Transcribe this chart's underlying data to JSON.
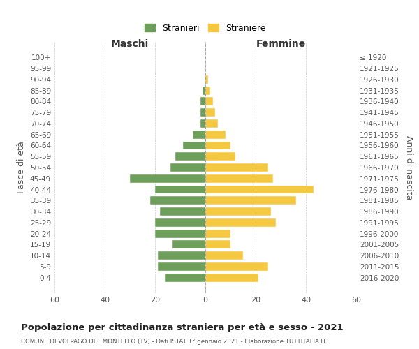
{
  "age_groups": [
    "0-4",
    "5-9",
    "10-14",
    "15-19",
    "20-24",
    "25-29",
    "30-34",
    "35-39",
    "40-44",
    "45-49",
    "50-54",
    "55-59",
    "60-64",
    "65-69",
    "70-74",
    "75-79",
    "80-84",
    "85-89",
    "90-94",
    "95-99",
    "100+"
  ],
  "birth_years": [
    "2016-2020",
    "2011-2015",
    "2006-2010",
    "2001-2005",
    "1996-2000",
    "1991-1995",
    "1986-1990",
    "1981-1985",
    "1976-1980",
    "1971-1975",
    "1966-1970",
    "1961-1965",
    "1956-1960",
    "1951-1955",
    "1946-1950",
    "1941-1945",
    "1936-1940",
    "1931-1935",
    "1926-1930",
    "1921-1925",
    "≤ 1920"
  ],
  "males": [
    16,
    19,
    19,
    13,
    20,
    20,
    18,
    22,
    20,
    30,
    14,
    12,
    9,
    5,
    2,
    2,
    2,
    1,
    0,
    0,
    0
  ],
  "females": [
    21,
    25,
    15,
    10,
    10,
    28,
    26,
    36,
    43,
    27,
    25,
    12,
    10,
    8,
    5,
    4,
    3,
    2,
    1,
    0,
    0
  ],
  "male_color": "#6d9e5a",
  "female_color": "#f5c842",
  "male_label": "Stranieri",
  "female_label": "Straniere",
  "title": "Popolazione per cittadinanza straniera per età e sesso - 2021",
  "subtitle": "COMUNE DI VOLPAGO DEL MONTELLO (TV) - Dati ISTAT 1° gennaio 2021 - Elaborazione TUTTITALIA.IT",
  "xlabel_left": "Maschi",
  "xlabel_right": "Femmine",
  "ylabel_left": "Fasce di età",
  "ylabel_right": "Anni di nascita",
  "xlim": 60,
  "background_color": "#ffffff",
  "grid_color": "#cccccc"
}
